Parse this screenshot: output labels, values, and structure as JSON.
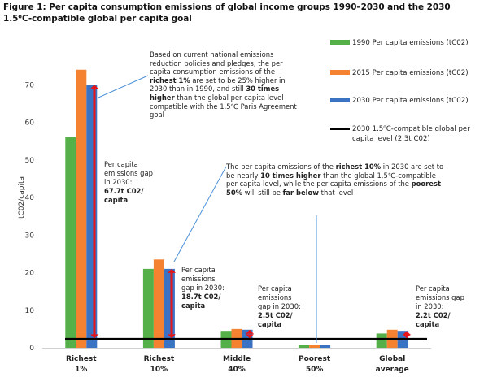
{
  "figure": {
    "title": "Figure 1: Per capita consumption emissions of global income groups 1990–2030 and the 2030 1.5⁰C-compatible global per capita goal"
  },
  "chart_data": {
    "type": "bar",
    "ylabel": "tC02/capita",
    "xlabel": "",
    "ylim": [
      0,
      80
    ],
    "yticks": [
      0,
      10,
      20,
      30,
      40,
      50,
      60,
      70
    ],
    "grid": false,
    "legend_position": "top-right",
    "categories": [
      {
        "line1": "Richest",
        "line2": "1%"
      },
      {
        "line1": "Richest",
        "line2": "10%"
      },
      {
        "line1": "Middle",
        "line2": "40%"
      },
      {
        "line1": "Poorest",
        "line2": "50%"
      },
      {
        "line1": "Global",
        "line2": "average"
      }
    ],
    "series": [
      {
        "name": "1990 Per capita emissions (tC02)",
        "color": "#56b04a",
        "values": [
          56,
          21,
          4.5,
          0.7,
          3.8
        ]
      },
      {
        "name": "2015 Per capita emissions (tC02)",
        "color": "#f58231",
        "values": [
          74,
          23.5,
          5.0,
          0.8,
          4.8
        ]
      },
      {
        "name": "2030 Per capita emissions (tC02)",
        "color": "#3a72c4",
        "values": [
          70,
          21,
          4.8,
          0.8,
          4.5
        ]
      }
    ],
    "target_line": {
      "label": "2030 1.5⁰C-compatible global per capita level (2.3t C02)",
      "value": 2.3,
      "color": "#000000"
    },
    "gap_arrow_color": "#e8141a",
    "gap_labels": [
      {
        "line1": "Per capita",
        "line2": "emissions gap",
        "line3": "in 2030:",
        "line4": "67.7t C02/",
        "line5": "capita"
      },
      {
        "line1": "Per capita",
        "line2": "emissions",
        "line3": "gap in 2030:",
        "line4": "18.7t C02/",
        "line5": "capita"
      },
      {
        "line1": "Per capita",
        "line2": "emissions",
        "line3": "gap in 2030:",
        "line4": "2.5t C02/",
        "line5": "capita"
      },
      {
        "line1": "",
        "line2": "",
        "line3": "",
        "line4": "",
        "line5": ""
      },
      {
        "line1": "Per capita",
        "line2": "emissions gap",
        "line3": "in 2030:",
        "line4": "2.2t C02/",
        "line5": "capita"
      }
    ],
    "callouts": {
      "richest1": {
        "p1": "Based on current national emissions reduction policies and pledges, the per capita consumption emissions of the ",
        "b1": "richest 1%",
        "p2": " are set to be 25% higher in 2030 than in 1990, and still ",
        "b2": "30 times higher",
        "p3": " than the global per capita level compatible with the 1.5℃ Paris Agreement goal"
      },
      "richest10": {
        "p1": "The per capita emissions of the ",
        "b1": "richest 10%",
        "p2": " in 2030 are set to be nearly ",
        "b2": "10 times higher",
        "p3": " than the global 1.5℃-compatible per capita level, while the per capita emissions of the ",
        "b3": "poorest 50%",
        "p4": " will still be ",
        "b4": "far below",
        "p5": " that level"
      }
    }
  }
}
